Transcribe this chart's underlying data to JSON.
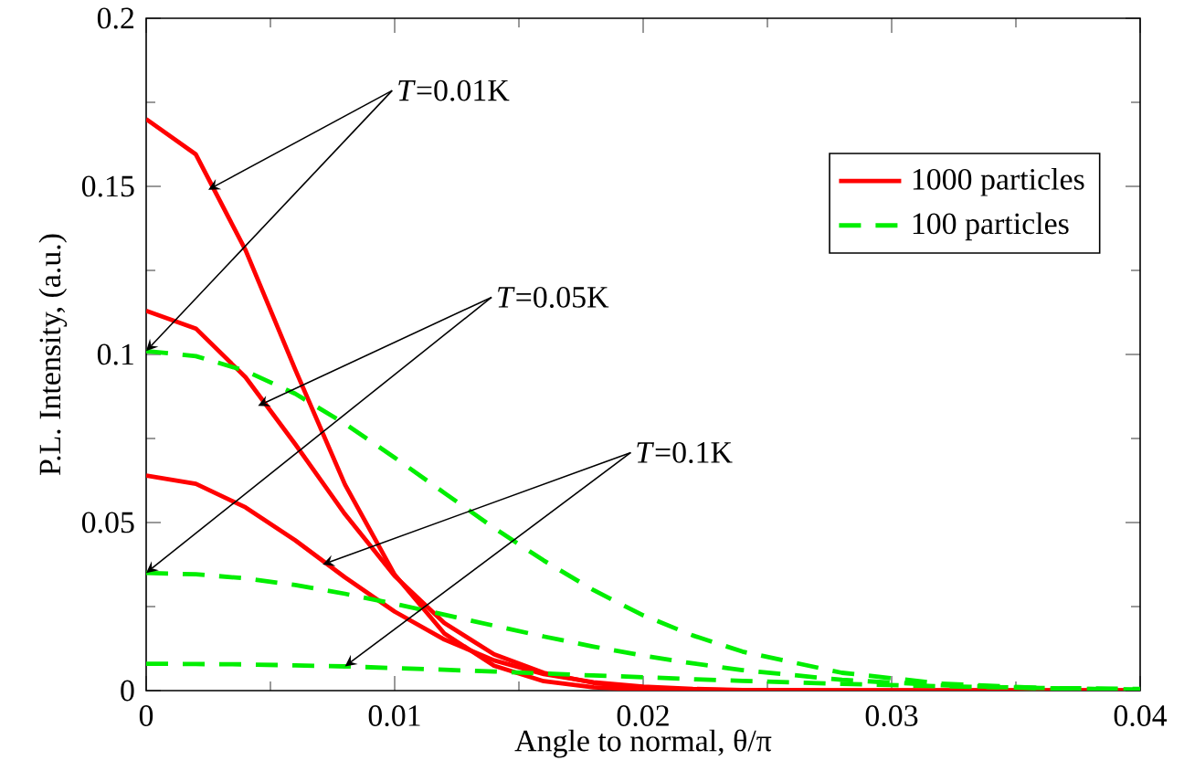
{
  "chart_data": {
    "type": "line",
    "xlabel": "Angle to normal, θ/π",
    "ylabel": "P.L. Intensity, (a.u.)",
    "x": [
      0,
      0.002,
      0.004,
      0.006,
      0.008,
      0.01,
      0.012,
      0.014,
      0.016,
      0.018,
      0.02,
      0.022,
      0.024,
      0.028,
      0.032,
      0.036,
      0.04
    ],
    "series": [
      {
        "name": "1000 particles",
        "color": "#ff0000",
        "line_style": "solid",
        "values": [
          0.17,
          0.1595,
          0.131,
          0.0955,
          0.0613,
          0.0345,
          0.017,
          0.0074,
          0.0028,
          0.001,
          0.0003,
          0.0001,
          0,
          0,
          0,
          0,
          0
        ]
      },
      {
        "color": "#ff0000",
        "line_style": "solid",
        "values": [
          0.113,
          0.1077,
          0.0932,
          0.0733,
          0.0525,
          0.0341,
          0.0201,
          0.0108,
          0.0053,
          0.0023,
          0.0009,
          0.0003,
          0.0001,
          0,
          0,
          0,
          0
        ]
      },
      {
        "color": "#ff0000",
        "line_style": "solid",
        "values": [
          0.064,
          0.0615,
          0.0545,
          0.0447,
          0.0337,
          0.0235,
          0.0152,
          0.009,
          0.0049,
          0.0025,
          0.0012,
          0.0005,
          0.0002,
          0,
          0,
          0,
          0
        ]
      },
      {
        "name": "100 particles",
        "color": "#00ee00",
        "line_style": "dashed",
        "values": [
          0.101,
          0.0995,
          0.0951,
          0.0883,
          0.0794,
          0.0693,
          0.0588,
          0.0484,
          0.0387,
          0.0299,
          0.0224,
          0.0164,
          0.0116,
          0.0053,
          0.0021,
          0.0008,
          0.0002
        ]
      },
      {
        "color": "#00ee00",
        "line_style": "dashed",
        "values": [
          0.035,
          0.0346,
          0.0334,
          0.0314,
          0.0288,
          0.0258,
          0.0226,
          0.0193,
          0.0161,
          0.0131,
          0.0104,
          0.0081,
          0.0061,
          0.0032,
          0.0016,
          0.0007,
          0.0003
        ]
      },
      {
        "color": "#00ee00",
        "line_style": "dashed",
        "values": [
          0.008,
          0.0079,
          0.0078,
          0.0075,
          0.0072,
          0.0067,
          0.0062,
          0.0057,
          0.0051,
          0.0045,
          0.004,
          0.0034,
          0.0029,
          0.002,
          0.0013,
          0.0008,
          0.0005
        ]
      }
    ],
    "xlim": [
      0,
      0.04
    ],
    "xticks": [
      0,
      0.01,
      0.02,
      0.03,
      0.04
    ],
    "ylim": [
      0,
      0.2
    ],
    "yticks": [
      0,
      0.05,
      0.1,
      0.15,
      0.2
    ],
    "legend": "top right",
    "grid": false,
    "marker": "none",
    "annotations": [
      {
        "text": "*T*=0.01K",
        "x": 0.0025,
        "y": 0.149
      },
      {
        "text": "*T*=0.05K",
        "x": 0.0045,
        "y": 0.0847
      },
      {
        "text": "*T*=0.1K",
        "x": 0.0071,
        "y": 0.0375
      }
    ]
  }
}
